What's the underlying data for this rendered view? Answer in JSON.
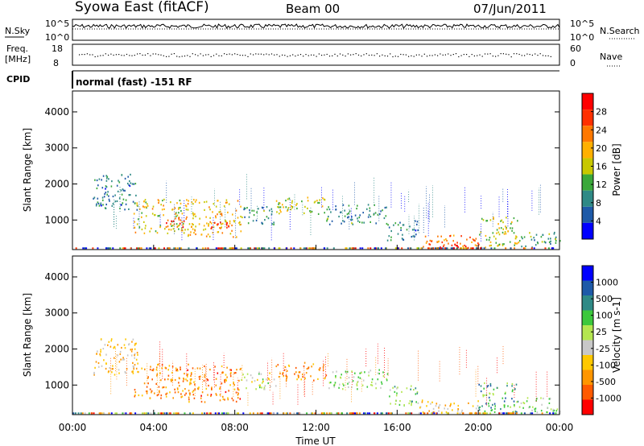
{
  "header": {
    "station": "Syowa East (fitACF)",
    "beam": "Beam 00",
    "date": "07/Jun/2011"
  },
  "top_panels": {
    "nsky_label": "N.Sky",
    "nsearch_label": "N.Search",
    "nsky_ticks": [
      "10^5",
      "10^0"
    ],
    "nsearch_ticks": [
      "10^5",
      "10^0"
    ],
    "freq_label_1": "Freq.",
    "freq_label_2": "[MHz]",
    "freq_ticks": [
      "18",
      "8"
    ],
    "nave_label": "Nave",
    "nave_ticks": [
      "60",
      "0"
    ],
    "cpid_label": "CPID",
    "cpid_text": "normal (fast) -151 RF"
  },
  "colors": {
    "power_scale": [
      "#0000ff",
      "#1e5aa8",
      "#2f8a86",
      "#3aa83a",
      "#c8c800",
      "#ffb000",
      "#ff7800",
      "#ff3000",
      "#ff0000"
    ],
    "velocity_scale": [
      "#ff0000",
      "#ff5a00",
      "#ff9600",
      "#ffc800",
      "#c8c8c8",
      "#b4e650",
      "#3cc83c",
      "#2f8a86",
      "#1e5aa8",
      "#0000ff"
    ]
  },
  "chart_data": [
    {
      "type": "heatmap",
      "name": "power",
      "ylabel": "Slant Range [km]",
      "xlabel": "Time UT",
      "x_ticks": [
        "00:00",
        "04:00",
        "08:00",
        "12:00",
        "16:00",
        "20:00",
        "00:00"
      ],
      "x_range_hours": [
        0,
        24
      ],
      "y_ticks": [
        1000,
        2000,
        3000,
        4000
      ],
      "ylim": [
        180,
        4580
      ],
      "colorbar_label": "Power [dB]",
      "colorbar_ticks": [
        4,
        8,
        12,
        16,
        20,
        24,
        28
      ],
      "colorbar_range": [
        0,
        32
      ],
      "regions": [
        {
          "t0": 1.0,
          "t1": 3.2,
          "r0": 1300,
          "r1": 2300,
          "level": 0.25
        },
        {
          "t0": 3.0,
          "t1": 5.5,
          "r0": 650,
          "r1": 1600,
          "level": 0.55
        },
        {
          "t0": 4.5,
          "t1": 5.5,
          "r0": 800,
          "r1": 1100,
          "level": 0.85
        },
        {
          "t0": 5.5,
          "t1": 8.3,
          "r0": 550,
          "r1": 1600,
          "level": 0.6
        },
        {
          "t0": 6.8,
          "t1": 7.8,
          "r0": 750,
          "r1": 1000,
          "level": 0.95
        },
        {
          "t0": 8.3,
          "t1": 10.0,
          "r0": 900,
          "r1": 1400,
          "level": 0.3
        },
        {
          "t0": 10.0,
          "t1": 12.5,
          "r0": 1150,
          "r1": 1650,
          "level": 0.5
        },
        {
          "t0": 12.5,
          "t1": 15.5,
          "r0": 900,
          "r1": 1450,
          "level": 0.3
        },
        {
          "t0": 15.5,
          "t1": 17.0,
          "r0": 450,
          "r1": 1000,
          "level": 0.25
        },
        {
          "t0": 17.0,
          "t1": 20.0,
          "r0": 220,
          "r1": 600,
          "level": 0.75
        },
        {
          "t0": 17.5,
          "t1": 19.5,
          "r0": 220,
          "r1": 350,
          "level": 0.95
        },
        {
          "t0": 20.0,
          "t1": 22.0,
          "r0": 250,
          "r1": 1100,
          "level": 0.5
        },
        {
          "t0": 22.0,
          "t1": 24.0,
          "r0": 250,
          "r1": 700,
          "level": 0.35
        }
      ]
    },
    {
      "type": "heatmap",
      "name": "velocity",
      "ylabel": "Slant Range [km]",
      "xlabel": "Time UT",
      "x_ticks": [
        "00:00",
        "04:00",
        "08:00",
        "12:00",
        "16:00",
        "20:00",
        "00:00"
      ],
      "x_range_hours": [
        0,
        24
      ],
      "y_ticks": [
        1000,
        2000,
        3000,
        4000
      ],
      "ylim": [
        180,
        4580
      ],
      "colorbar_label": "Velocity [m s-1]",
      "colorbar_ticks": [
        "1000",
        "500",
        "100",
        "25",
        "-25",
        "-100",
        "-500",
        "-1000"
      ],
      "regions": [
        {
          "t0": 1.0,
          "t1": 3.2,
          "r0": 1300,
          "r1": 2300,
          "level": 0.35
        },
        {
          "t0": 3.0,
          "t1": 5.5,
          "r0": 650,
          "r1": 1600,
          "level": 0.25
        },
        {
          "t0": 5.5,
          "t1": 8.3,
          "r0": 550,
          "r1": 1600,
          "level": 0.22
        },
        {
          "t0": 8.3,
          "t1": 10.0,
          "r0": 900,
          "r1": 1400,
          "level": 0.5
        },
        {
          "t0": 10.0,
          "t1": 12.5,
          "r0": 1150,
          "r1": 1650,
          "level": 0.25
        },
        {
          "t0": 12.5,
          "t1": 15.5,
          "r0": 900,
          "r1": 1450,
          "level": 0.55
        },
        {
          "t0": 15.5,
          "t1": 17.0,
          "r0": 450,
          "r1": 1000,
          "level": 0.6
        },
        {
          "t0": 17.0,
          "t1": 20.0,
          "r0": 220,
          "r1": 600,
          "level": 0.35
        },
        {
          "t0": 20.0,
          "t1": 22.0,
          "r0": 250,
          "r1": 1100,
          "level": 0.7
        },
        {
          "t0": 22.0,
          "t1": 24.0,
          "r0": 250,
          "r1": 700,
          "level": 0.55
        }
      ]
    }
  ]
}
